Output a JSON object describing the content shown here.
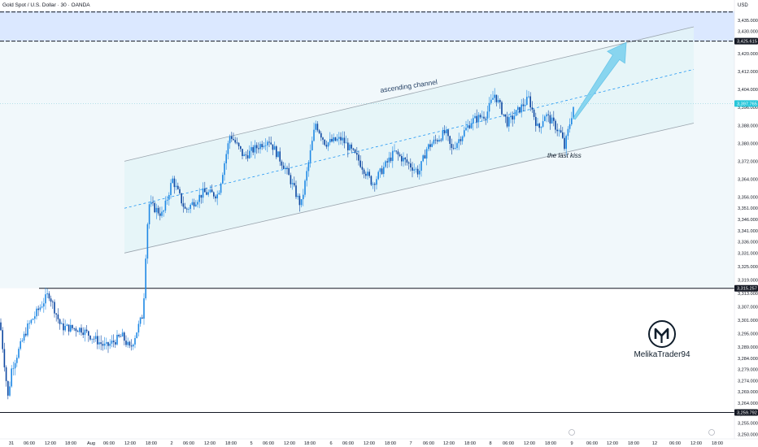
{
  "header": {
    "title": "Gold Spot / U.S. Dollar · 30 · OANDA",
    "currency": "USD"
  },
  "colors": {
    "accent": "#2196f3",
    "up": "#26a69a",
    "down": "#ef5350",
    "candle": "#1e88e5",
    "resistance_zone": "#dbe8ff",
    "channel_fill": "#e3f4f8",
    "level": "#131722"
  },
  "annotations": {
    "channel_label": "ascending channel",
    "kiss_label": "the last kiss",
    "watermark": "MelikaTrader94"
  },
  "price_labels": {
    "current": "3,397.765",
    "resistance": "3,425.615",
    "support_upper": "3,315.257",
    "support_lower": "3,259.792"
  },
  "x_axis": {
    "ticks": [
      "31",
      "06:00",
      "12:00",
      "18:00",
      "Aug",
      "06:00",
      "12:00",
      "18:00",
      "2",
      "06:00",
      "12:00",
      "18:00",
      "5",
      "06:00",
      "12:00",
      "18:00",
      "6",
      "06:00",
      "12:00",
      "18:00",
      "7",
      "06:00",
      "12:00",
      "18:00",
      "8",
      "06:00",
      "12:00",
      "18:00",
      "9",
      "06:00",
      "12:00",
      "18:00",
      "12",
      "06:00",
      "12:00",
      "18:00"
    ]
  },
  "y_axis": {
    "ticks": [
      "3,435.000",
      "3,430.000",
      "3,420.000",
      "3,412.000",
      "3,404.000",
      "3,396.000",
      "3,388.000",
      "3,380.000",
      "3,372.000",
      "3,364.000",
      "3,356.000",
      "3,351.000",
      "3,346.000",
      "3,341.000",
      "3,336.000",
      "3,331.000",
      "3,325.000",
      "3,319.000",
      "3,313.000",
      "3,307.000",
      "3,301.000",
      "3,295.000",
      "3,289.000",
      "3,284.000",
      "3,279.000",
      "3,274.000",
      "3,269.000",
      "3,264.000",
      "3,259.000",
      "3,255.000",
      "3,250.000"
    ]
  },
  "chart_data": {
    "type": "candlestick",
    "title": "Gold Spot / U.S. Dollar · 30 · OANDA",
    "ylabel": "USD",
    "ylim": [
      3248,
      3440
    ],
    "path_points": [
      {
        "t": 0,
        "p": 3300
      },
      {
        "t": 10,
        "p": 3266
      },
      {
        "t": 14,
        "p": 3279
      },
      {
        "t": 34,
        "p": 3298
      },
      {
        "t": 60,
        "p": 3313
      },
      {
        "t": 75,
        "p": 3298
      },
      {
        "t": 100,
        "p": 3297
      },
      {
        "t": 130,
        "p": 3289
      },
      {
        "t": 150,
        "p": 3294
      },
      {
        "t": 160,
        "p": 3288
      },
      {
        "t": 176,
        "p": 3304
      },
      {
        "t": 180,
        "p": 3337
      },
      {
        "t": 183,
        "p": 3353
      },
      {
        "t": 200,
        "p": 3348
      },
      {
        "t": 212,
        "p": 3364
      },
      {
        "t": 228,
        "p": 3350
      },
      {
        "t": 250,
        "p": 3358
      },
      {
        "t": 268,
        "p": 3357
      },
      {
        "t": 283,
        "p": 3384
      },
      {
        "t": 300,
        "p": 3374
      },
      {
        "t": 330,
        "p": 3382
      },
      {
        "t": 352,
        "p": 3368
      },
      {
        "t": 370,
        "p": 3352
      },
      {
        "t": 388,
        "p": 3389
      },
      {
        "t": 400,
        "p": 3380
      },
      {
        "t": 420,
        "p": 3382
      },
      {
        "t": 440,
        "p": 3373
      },
      {
        "t": 458,
        "p": 3362
      },
      {
        "t": 485,
        "p": 3376
      },
      {
        "t": 515,
        "p": 3367
      },
      {
        "t": 525,
        "p": 3378
      },
      {
        "t": 548,
        "p": 3385
      },
      {
        "t": 555,
        "p": 3377
      },
      {
        "t": 580,
        "p": 3390
      },
      {
        "t": 598,
        "p": 3393
      },
      {
        "t": 608,
        "p": 3402
      },
      {
        "t": 624,
        "p": 3389
      },
      {
        "t": 650,
        "p": 3400
      },
      {
        "t": 662,
        "p": 3386
      },
      {
        "t": 670,
        "p": 3393
      },
      {
        "t": 680,
        "p": 3389
      },
      {
        "t": 690,
        "p": 3384
      },
      {
        "t": 694,
        "p": 3378
      },
      {
        "t": 706,
        "p": 3398
      }
    ],
    "levels": [
      3425.615,
      3315.257,
      3259.792
    ],
    "resistance_zone": [
      3425.615,
      3439
    ],
    "channel": {
      "upper": [
        {
          "t": 153,
          "p": 3372
        },
        {
          "t": 853,
          "p": 3432
        }
      ],
      "middle": [
        {
          "t": 153,
          "p": 3351
        },
        {
          "t": 853,
          "p": 3413
        }
      ],
      "lower": [
        {
          "t": 153,
          "p": 3331
        },
        {
          "t": 853,
          "p": 3389
        }
      ]
    },
    "projection": {
      "from": {
        "t": 706,
        "p": 3391
      },
      "to": {
        "t": 770,
        "p": 3425
      }
    }
  }
}
